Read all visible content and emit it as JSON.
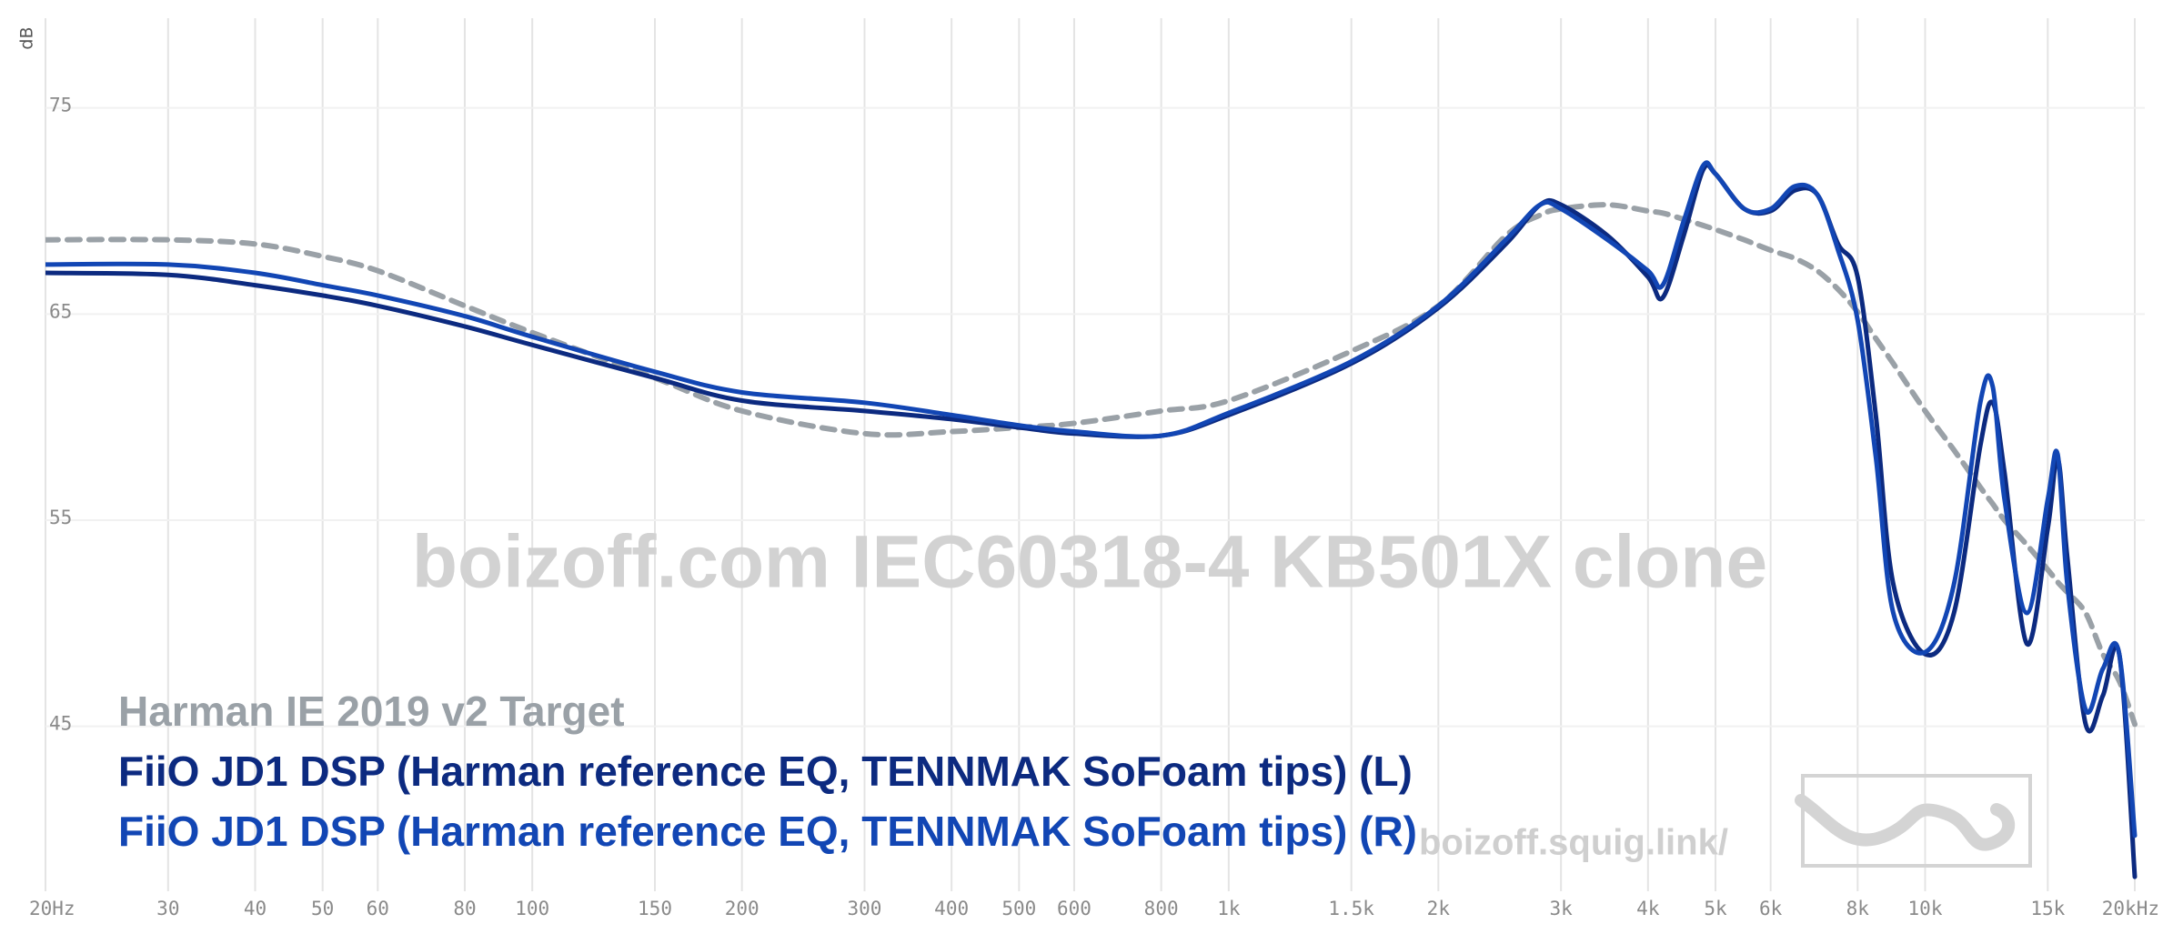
{
  "chart_data": {
    "type": "line",
    "y_label": "dB",
    "watermark": "boizoff.com IEC60318-4 KB501X clone",
    "site_label": "boizoff.squig.link/",
    "log_x": true,
    "grid": true,
    "legend": "bottom-left",
    "xlim": [
      20,
      20000
    ],
    "ylim": [
      37,
      79
    ],
    "xticks": [
      {
        "value": 20,
        "label": "20Hz"
      },
      30,
      40,
      50,
      60,
      80,
      100,
      150,
      200,
      300,
      400,
      500,
      600,
      800,
      {
        "value": 1000,
        "label": "1k"
      },
      {
        "value": 1500,
        "label": "1.5k"
      },
      {
        "value": 2000,
        "label": "2k"
      },
      {
        "value": 3000,
        "label": "3k"
      },
      {
        "value": 4000,
        "label": "4k"
      },
      {
        "value": 5000,
        "label": "5k"
      },
      {
        "value": 6000,
        "label": "6k"
      },
      {
        "value": 8000,
        "label": "8k"
      },
      {
        "value": 10000,
        "label": "10k"
      },
      {
        "value": 15000,
        "label": "15k"
      },
      {
        "value": 20000,
        "label": "20kHz"
      }
    ],
    "yticks": [
      45,
      55,
      65,
      75
    ],
    "x": [
      20,
      30,
      40,
      50,
      60,
      80,
      100,
      150,
      200,
      300,
      400,
      500,
      600,
      800,
      1000,
      1500,
      2000,
      2500,
      2800,
      3000,
      3500,
      4000,
      4200,
      4500,
      4800,
      5000,
      5500,
      6000,
      6500,
      7000,
      7500,
      8000,
      8500,
      9000,
      10000,
      11000,
      12000,
      12500,
      13000,
      14000,
      15000,
      15500,
      16000,
      17000,
      18000,
      19000,
      20000
    ],
    "series": [
      {
        "name": "Harman IE 2019 v2 Target",
        "color": "#9aa1a7",
        "dashed": true,
        "values": [
          68.6,
          68.6,
          68.4,
          67.8,
          67.1,
          65.4,
          64.1,
          61.9,
          60.3,
          59.2,
          59.3,
          59.5,
          59.7,
          60.3,
          60.8,
          63.2,
          65.4,
          68.8,
          69.8,
          70.1,
          70.3,
          70,
          69.9,
          69.6,
          69.3,
          69.1,
          68.6,
          68.1,
          67.7,
          67.1,
          66.2,
          65.1,
          63.8,
          62.6,
          60.3,
          58.4,
          56.6,
          55.8,
          55,
          53.8,
          52.6,
          52,
          51.5,
          50.5,
          48.5,
          47.2,
          45.1
        ]
      },
      {
        "name": "FiiO JD1 DSP (Harman reference EQ, TENNMAK SoFoam tips) (L)",
        "color": "#0c2a80",
        "dashed": false,
        "values": [
          67,
          66.9,
          66.4,
          65.9,
          65.4,
          64.4,
          63.5,
          61.9,
          60.8,
          60.3,
          59.9,
          59.5,
          59.2,
          59.1,
          60.1,
          62.6,
          65.3,
          68.4,
          70.3,
          70.3,
          68.8,
          66.8,
          65.8,
          68.8,
          72,
          71.8,
          70.1,
          70,
          71,
          70.8,
          68.4,
          66.8,
          60,
          51.9,
          48.5,
          50.5,
          58.6,
          60.7,
          57.3,
          49,
          54.6,
          58,
          53.2,
          45.1,
          46.5,
          48.5,
          37.7
        ]
      },
      {
        "name": "FiiO JD1 DSP (Harman reference EQ, TENNMAK SoFoam tips) (R)",
        "color": "#1246b4",
        "dashed": false,
        "values": [
          67.4,
          67.4,
          67,
          66.4,
          65.9,
          64.9,
          63.9,
          62.2,
          61.2,
          60.7,
          60.1,
          59.6,
          59.3,
          59.1,
          60.2,
          62.7,
          65.4,
          68.6,
          70.3,
          70.1,
          68.6,
          67.1,
          66.4,
          69.5,
          72.2,
          71.8,
          70.1,
          70.1,
          71.2,
          70.8,
          68.1,
          64.7,
          58,
          50.5,
          48.6,
          51.9,
          60.7,
          61.5,
          56,
          50.5,
          56,
          58.2,
          51.9,
          45.8,
          47.8,
          48.5,
          39.7
        ]
      }
    ]
  }
}
